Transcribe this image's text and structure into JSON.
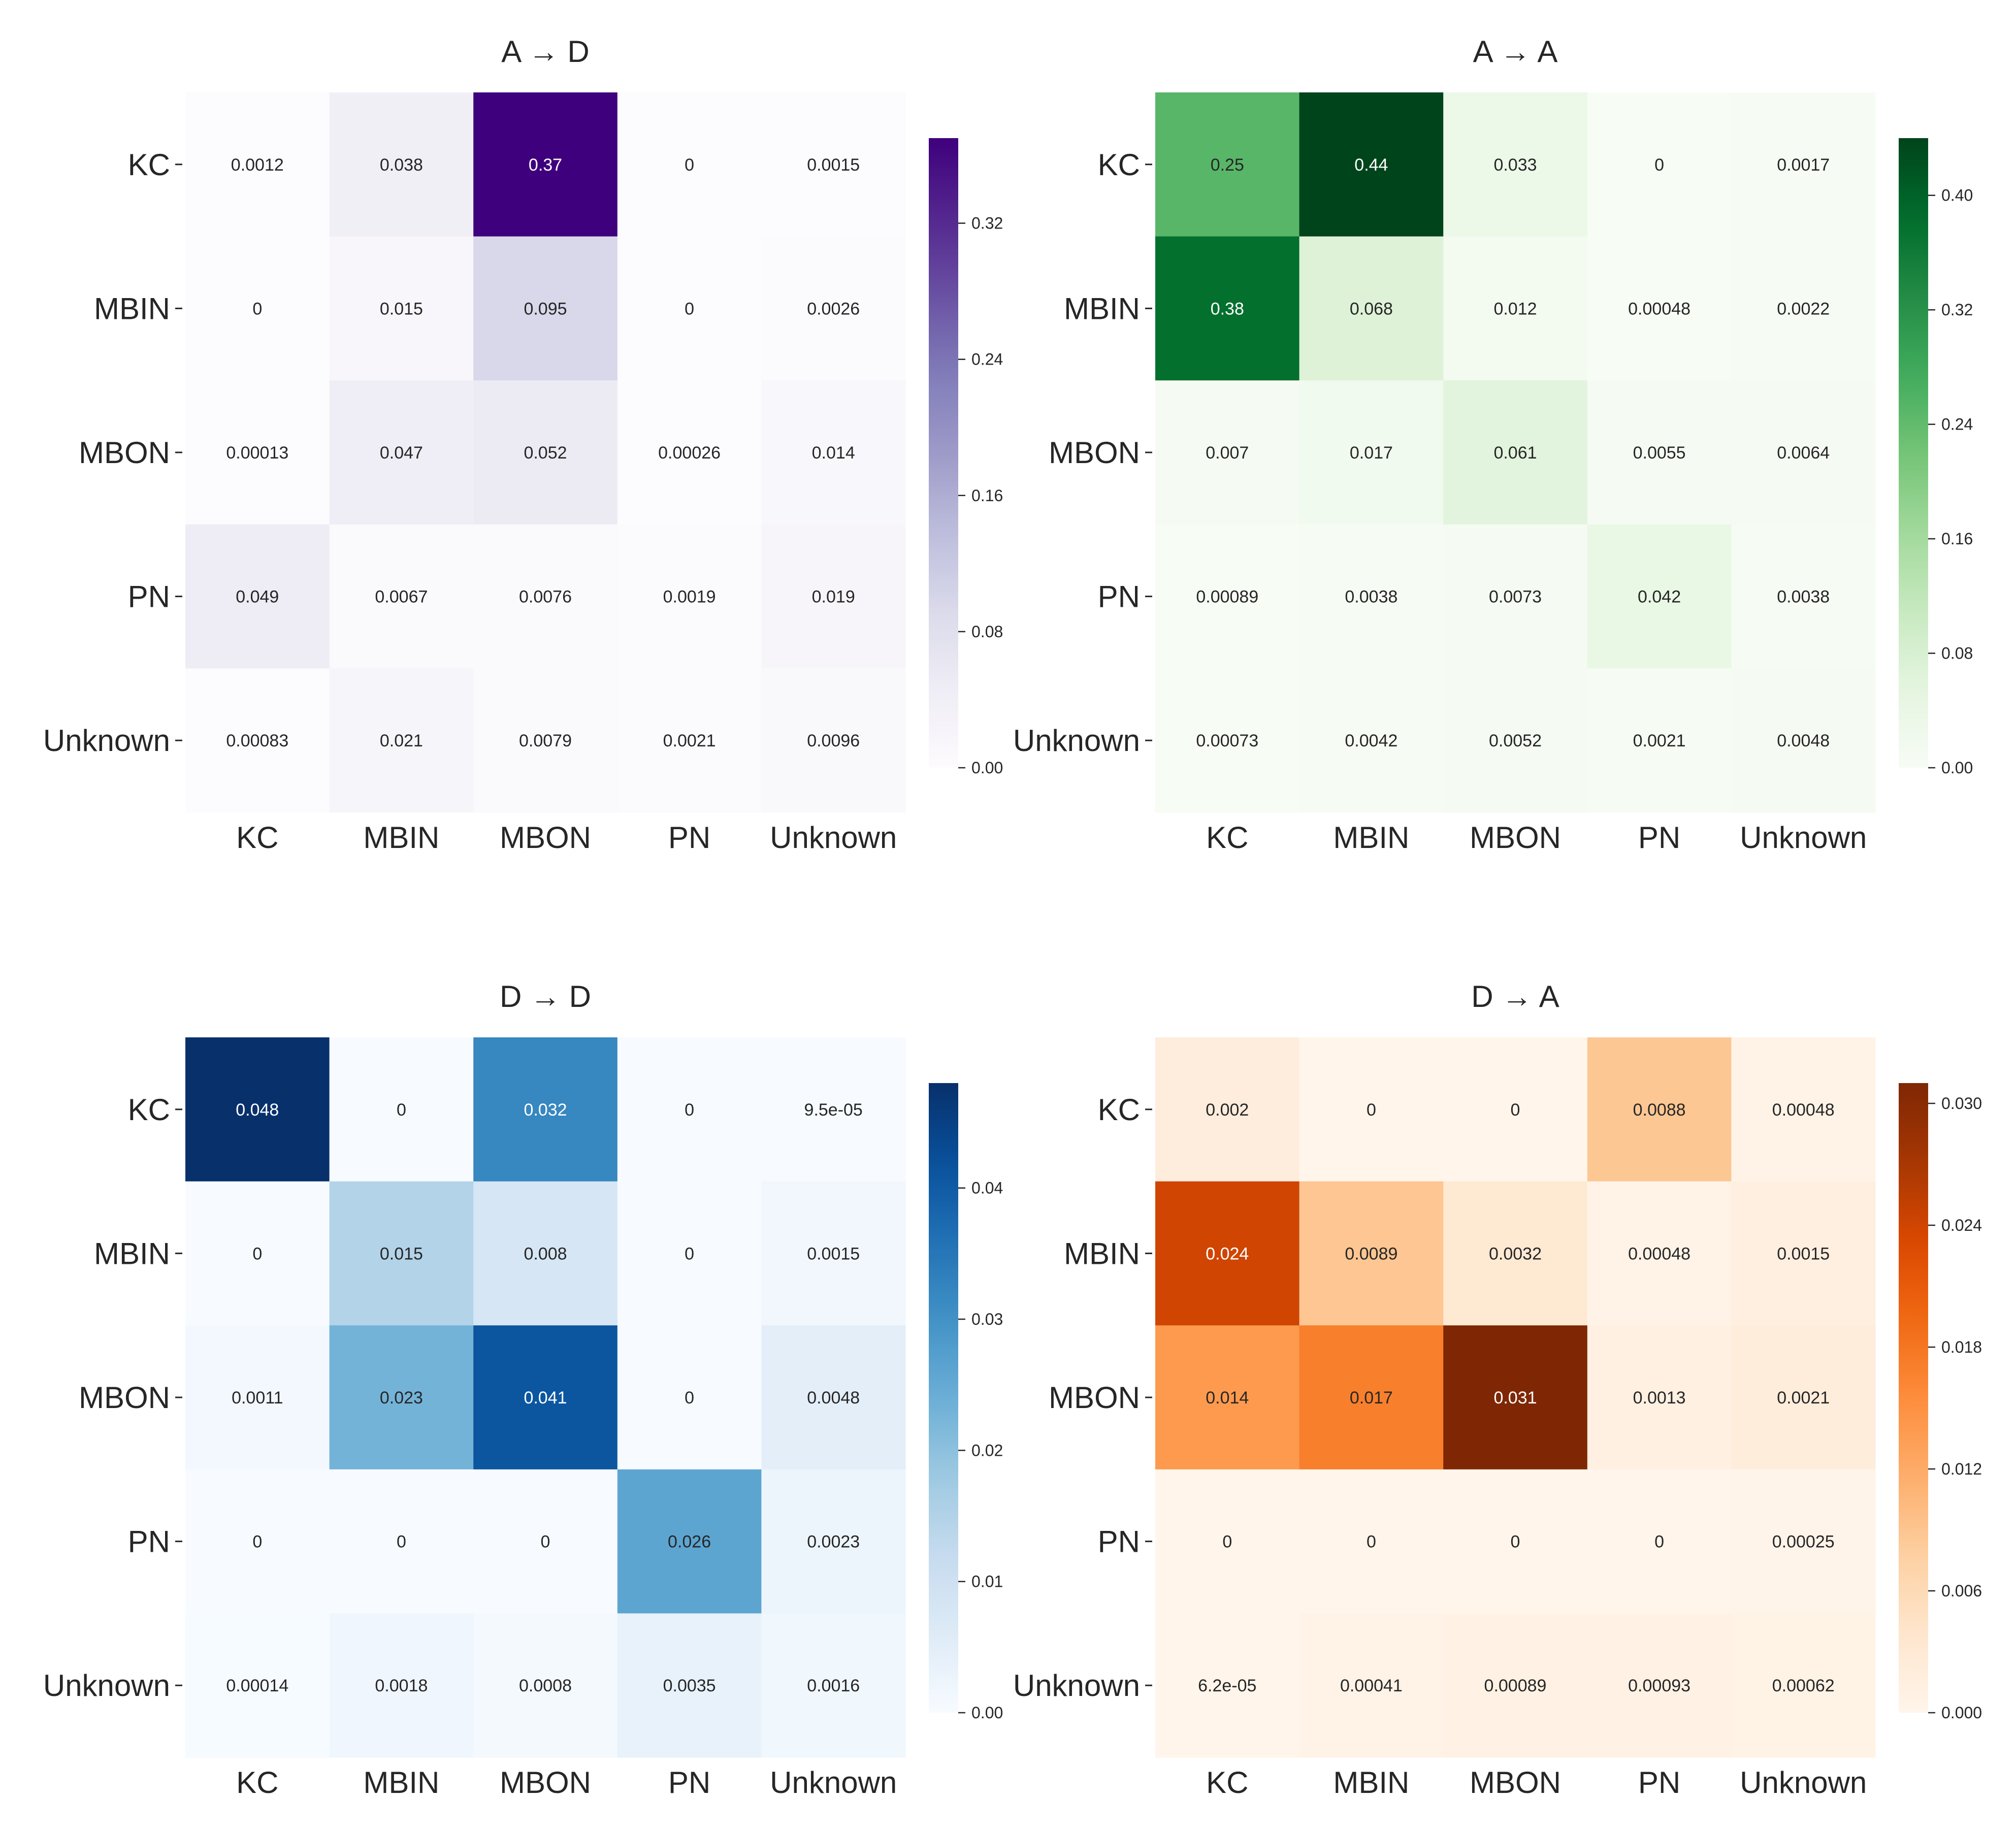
{
  "chart_data": [
    {
      "type": "heatmap",
      "title": "A → D",
      "colormap": "Purples",
      "rows": [
        "KC",
        "MBIN",
        "MBON",
        "PN",
        "Unknown"
      ],
      "cols": [
        "KC",
        "MBIN",
        "MBON",
        "PN",
        "Unknown"
      ],
      "values": [
        [
          0.0012,
          0.038,
          0.37,
          0,
          0.0015
        ],
        [
          0,
          0.015,
          0.095,
          0,
          0.0026
        ],
        [
          0.00013,
          0.047,
          0.052,
          0.00026,
          0.014
        ],
        [
          0.049,
          0.0067,
          0.0076,
          0.0019,
          0.019
        ],
        [
          0.00083,
          0.021,
          0.0079,
          0.0021,
          0.0096
        ]
      ],
      "labels": [
        [
          "0.0012",
          "0.038",
          "0.37",
          "0",
          "0.0015"
        ],
        [
          "0",
          "0.015",
          "0.095",
          "0",
          "0.0026"
        ],
        [
          "0.00013",
          "0.047",
          "0.052",
          "0.00026",
          "0.014"
        ],
        [
          "0.049",
          "0.0067",
          "0.0076",
          "0.0019",
          "0.019"
        ],
        [
          "0.00083",
          "0.021",
          "0.0079",
          "0.0021",
          "0.0096"
        ]
      ],
      "vmin": 0,
      "vmax": 0.37,
      "colorbar_ticks": [
        0,
        0.08,
        0.16,
        0.24,
        0.32
      ],
      "colorbar_tick_labels": [
        "0.00",
        "0.08",
        "0.16",
        "0.24",
        "0.32"
      ]
    },
    {
      "type": "heatmap",
      "title": "A → A",
      "colormap": "Greens",
      "rows": [
        "KC",
        "MBIN",
        "MBON",
        "PN",
        "Unknown"
      ],
      "cols": [
        "KC",
        "MBIN",
        "MBON",
        "PN",
        "Unknown"
      ],
      "values": [
        [
          0.25,
          0.44,
          0.033,
          0,
          0.0017
        ],
        [
          0.38,
          0.068,
          0.012,
          0.00048,
          0.0022
        ],
        [
          0.007,
          0.017,
          0.061,
          0.0055,
          0.0064
        ],
        [
          0.00089,
          0.0038,
          0.0073,
          0.042,
          0.0038
        ],
        [
          0.00073,
          0.0042,
          0.0052,
          0.0021,
          0.0048
        ]
      ],
      "labels": [
        [
          "0.25",
          "0.44",
          "0.033",
          "0",
          "0.0017"
        ],
        [
          "0.38",
          "0.068",
          "0.012",
          "0.00048",
          "0.0022"
        ],
        [
          "0.007",
          "0.017",
          "0.061",
          "0.0055",
          "0.0064"
        ],
        [
          "0.00089",
          "0.0038",
          "0.0073",
          "0.042",
          "0.0038"
        ],
        [
          "0.00073",
          "0.0042",
          "0.0052",
          "0.0021",
          "0.0048"
        ]
      ],
      "vmin": 0,
      "vmax": 0.44,
      "colorbar_ticks": [
        0,
        0.08,
        0.16,
        0.24,
        0.32,
        0.4
      ],
      "colorbar_tick_labels": [
        "0.00",
        "0.08",
        "0.16",
        "0.24",
        "0.32",
        "0.40"
      ]
    },
    {
      "type": "heatmap",
      "title": "D → D",
      "colormap": "Blues",
      "rows": [
        "KC",
        "MBIN",
        "MBON",
        "PN",
        "Unknown"
      ],
      "cols": [
        "KC",
        "MBIN",
        "MBON",
        "PN",
        "Unknown"
      ],
      "values": [
        [
          0.048,
          0,
          0.032,
          0,
          9.5e-05
        ],
        [
          0,
          0.015,
          0.008,
          0,
          0.0015
        ],
        [
          0.0011,
          0.023,
          0.041,
          0,
          0.0048
        ],
        [
          0,
          0,
          0,
          0.026,
          0.0023
        ],
        [
          0.00014,
          0.0018,
          0.0008,
          0.0035,
          0.0016
        ]
      ],
      "labels": [
        [
          "0.048",
          "0",
          "0.032",
          "0",
          "9.5e-05"
        ],
        [
          "0",
          "0.015",
          "0.008",
          "0",
          "0.0015"
        ],
        [
          "0.0011",
          "0.023",
          "0.041",
          "0",
          "0.0048"
        ],
        [
          "0",
          "0",
          "0",
          "0.026",
          "0.0023"
        ],
        [
          "0.00014",
          "0.0018",
          "0.0008",
          "0.0035",
          "0.0016"
        ]
      ],
      "vmin": 0,
      "vmax": 0.048,
      "colorbar_ticks": [
        0,
        0.01,
        0.02,
        0.03,
        0.04
      ],
      "colorbar_tick_labels": [
        "0.00",
        "0.01",
        "0.02",
        "0.03",
        "0.04"
      ]
    },
    {
      "type": "heatmap",
      "title": "D → A",
      "colormap": "Oranges",
      "rows": [
        "KC",
        "MBIN",
        "MBON",
        "PN",
        "Unknown"
      ],
      "cols": [
        "KC",
        "MBIN",
        "MBON",
        "PN",
        "Unknown"
      ],
      "values": [
        [
          0.002,
          0,
          0,
          0.0088,
          0.00048
        ],
        [
          0.024,
          0.0089,
          0.0032,
          0.00048,
          0.0015
        ],
        [
          0.014,
          0.017,
          0.031,
          0.0013,
          0.0021
        ],
        [
          0,
          0,
          0,
          0,
          0.00025
        ],
        [
          6.2e-05,
          0.00041,
          0.00089,
          0.00093,
          0.00062
        ]
      ],
      "labels": [
        [
          "0.002",
          "0",
          "0",
          "0.0088",
          "0.00048"
        ],
        [
          "0.024",
          "0.0089",
          "0.0032",
          "0.00048",
          "0.0015"
        ],
        [
          "0.014",
          "0.017",
          "0.031",
          "0.0013",
          "0.0021"
        ],
        [
          "0",
          "0",
          "0",
          "0",
          "0.00025"
        ],
        [
          "6.2e-05",
          "0.00041",
          "0.00089",
          "0.00093",
          "0.00062"
        ]
      ],
      "vmin": 0,
      "vmax": 0.031,
      "colorbar_ticks": [
        0,
        0.006,
        0.012,
        0.018,
        0.024,
        0.03
      ],
      "colorbar_tick_labels": [
        "0.000",
        "0.006",
        "0.012",
        "0.018",
        "0.024",
        "0.030"
      ]
    }
  ]
}
